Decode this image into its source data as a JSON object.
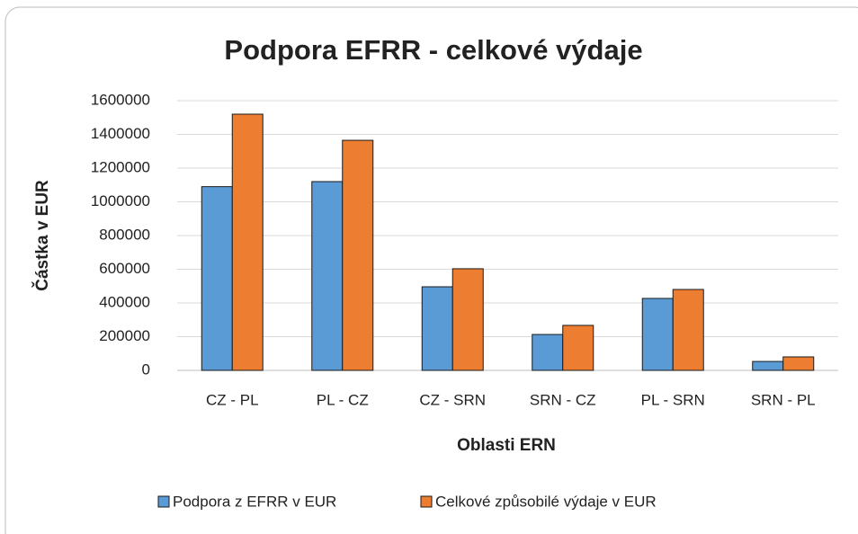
{
  "chart_data": {
    "type": "bar",
    "title": "Podpora EFRR - celkové výdaje",
    "x_label": "Oblasti ERN",
    "y_label": "Částka v EUR",
    "categories": [
      "CZ - PL",
      "PL - CZ",
      "CZ - SRN",
      "SRN - CZ",
      "PL - SRN",
      "SRN - PL"
    ],
    "series": [
      {
        "name": "Podpora z EFRR v EUR",
        "color": "#5b9bd5",
        "values": [
          1090000,
          1120000,
          496000,
          213000,
          427000,
          53000
        ]
      },
      {
        "name": "Celkové způsobilé výdaje v  EUR",
        "color": "#ed7d31",
        "values": [
          1520000,
          1365000,
          603000,
          267000,
          480000,
          80000
        ]
      }
    ],
    "ylim": [
      0,
      1600000
    ],
    "yticks": [
      0,
      200000,
      400000,
      600000,
      800000,
      1000000,
      1200000,
      1400000,
      1600000
    ],
    "grid": true,
    "legend": "bottom"
  }
}
